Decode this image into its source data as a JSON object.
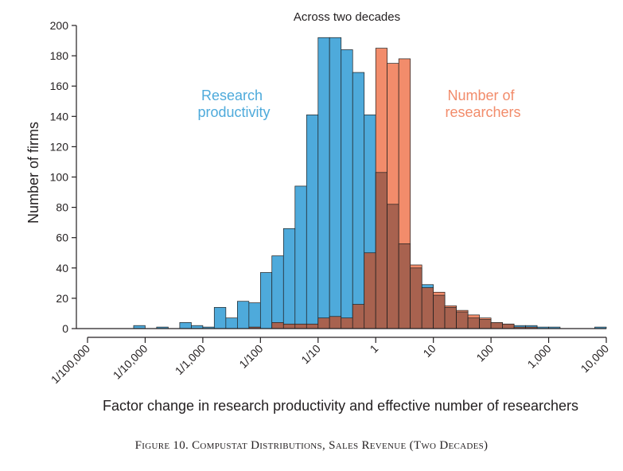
{
  "chart_data": {
    "type": "bar",
    "subtype": "overlapping-histogram",
    "title": "Across two decades",
    "xlabel": "Factor change in research productivity and effective number of researchers",
    "ylabel": "Number of firms",
    "x_scale": "log10",
    "xlim": [
      1e-05,
      10000
    ],
    "ylim": [
      0,
      200
    ],
    "x_ticks": [
      {
        "value": 1e-05,
        "label": "1/100,000"
      },
      {
        "value": 0.0001,
        "label": "1/10,000"
      },
      {
        "value": 0.001,
        "label": "1/1,000"
      },
      {
        "value": 0.01,
        "label": "1/100"
      },
      {
        "value": 0.1,
        "label": "1/10"
      },
      {
        "value": 1,
        "label": "1"
      },
      {
        "value": 10,
        "label": "10"
      },
      {
        "value": 100,
        "label": "100"
      },
      {
        "value": 1000,
        "label": "1,000"
      },
      {
        "value": 10000,
        "label": "10,000"
      }
    ],
    "y_ticks": [
      0,
      20,
      40,
      60,
      80,
      100,
      120,
      140,
      160,
      180,
      200
    ],
    "grid": false,
    "bin_width_log10": 0.2,
    "series": [
      {
        "name": "Research productivity",
        "color": "#4eaadb",
        "bins": [
          {
            "x0": 6.31e-05,
            "x1": 0.0001,
            "count": 2
          },
          {
            "x0": 0.000158,
            "x1": 0.000251,
            "count": 1
          },
          {
            "x0": 0.000398,
            "x1": 0.000631,
            "count": 4
          },
          {
            "x0": 0.000631,
            "x1": 0.001,
            "count": 2
          },
          {
            "x0": 0.001,
            "x1": 0.00158,
            "count": 1
          },
          {
            "x0": 0.00158,
            "x1": 0.00251,
            "count": 14
          },
          {
            "x0": 0.00251,
            "x1": 0.00398,
            "count": 7
          },
          {
            "x0": 0.00398,
            "x1": 0.00631,
            "count": 18
          },
          {
            "x0": 0.00631,
            "x1": 0.01,
            "count": 17
          },
          {
            "x0": 0.01,
            "x1": 0.0158,
            "count": 37
          },
          {
            "x0": 0.0158,
            "x1": 0.0251,
            "count": 48
          },
          {
            "x0": 0.0251,
            "x1": 0.0398,
            "count": 66
          },
          {
            "x0": 0.0398,
            "x1": 0.0631,
            "count": 94
          },
          {
            "x0": 0.0631,
            "x1": 0.1,
            "count": 141
          },
          {
            "x0": 0.1,
            "x1": 0.158,
            "count": 192
          },
          {
            "x0": 0.158,
            "x1": 0.251,
            "count": 192
          },
          {
            "x0": 0.251,
            "x1": 0.398,
            "count": 184
          },
          {
            "x0": 0.398,
            "x1": 0.631,
            "count": 169
          },
          {
            "x0": 0.631,
            "x1": 1.0,
            "count": 141
          },
          {
            "x0": 1.0,
            "x1": 1.58,
            "count": 103
          },
          {
            "x0": 1.58,
            "x1": 2.51,
            "count": 82
          },
          {
            "x0": 2.51,
            "x1": 3.98,
            "count": 56
          },
          {
            "x0": 3.98,
            "x1": 6.31,
            "count": 40
          },
          {
            "x0": 6.31,
            "x1": 10.0,
            "count": 29
          },
          {
            "x0": 10.0,
            "x1": 15.8,
            "count": 22
          },
          {
            "x0": 15.8,
            "x1": 25.1,
            "count": 14
          },
          {
            "x0": 25.1,
            "x1": 39.8,
            "count": 11
          },
          {
            "x0": 39.8,
            "x1": 63.1,
            "count": 7
          },
          {
            "x0": 63.1,
            "x1": 100,
            "count": 6
          },
          {
            "x0": 100,
            "x1": 158,
            "count": 4
          },
          {
            "x0": 158,
            "x1": 251,
            "count": 3
          },
          {
            "x0": 251,
            "x1": 398,
            "count": 2
          },
          {
            "x0": 398,
            "x1": 631,
            "count": 2
          },
          {
            "x0": 631,
            "x1": 1000,
            "count": 1
          },
          {
            "x0": 1000,
            "x1": 1580,
            "count": 1
          },
          {
            "x0": 6310,
            "x1": 10000,
            "count": 1
          }
        ]
      },
      {
        "name": "Number of researchers",
        "color": "#f28c6b",
        "bins": [
          {
            "x0": 0.00631,
            "x1": 0.01,
            "count": 1
          },
          {
            "x0": 0.0158,
            "x1": 0.0251,
            "count": 4
          },
          {
            "x0": 0.0251,
            "x1": 0.0398,
            "count": 3
          },
          {
            "x0": 0.0398,
            "x1": 0.0631,
            "count": 3
          },
          {
            "x0": 0.0631,
            "x1": 0.1,
            "count": 3
          },
          {
            "x0": 0.1,
            "x1": 0.158,
            "count": 7
          },
          {
            "x0": 0.158,
            "x1": 0.251,
            "count": 8
          },
          {
            "x0": 0.251,
            "x1": 0.398,
            "count": 7
          },
          {
            "x0": 0.398,
            "x1": 0.631,
            "count": 16
          },
          {
            "x0": 0.631,
            "x1": 1.0,
            "count": 50
          },
          {
            "x0": 1.0,
            "x1": 1.58,
            "count": 185
          },
          {
            "x0": 1.58,
            "x1": 2.51,
            "count": 175
          },
          {
            "x0": 2.51,
            "x1": 3.98,
            "count": 178
          },
          {
            "x0": 3.98,
            "x1": 6.31,
            "count": 42
          },
          {
            "x0": 6.31,
            "x1": 10.0,
            "count": 27
          },
          {
            "x0": 10.0,
            "x1": 15.8,
            "count": 24
          },
          {
            "x0": 15.8,
            "x1": 25.1,
            "count": 15
          },
          {
            "x0": 25.1,
            "x1": 39.8,
            "count": 12
          },
          {
            "x0": 39.8,
            "x1": 63.1,
            "count": 9
          },
          {
            "x0": 63.1,
            "x1": 100,
            "count": 7
          },
          {
            "x0": 100,
            "x1": 158,
            "count": 4
          },
          {
            "x0": 158,
            "x1": 251,
            "count": 3
          },
          {
            "x0": 251,
            "x1": 398,
            "count": 1
          },
          {
            "x0": 398,
            "x1": 631,
            "count": 1
          }
        ]
      }
    ],
    "series_labels": [
      {
        "series": "Research productivity",
        "lines": [
          "Research",
          "productivity"
        ],
        "color": "#4eaadb"
      },
      {
        "series": "Number of researchers",
        "lines": [
          "Number of",
          "researchers"
        ],
        "color": "#f28c6b"
      }
    ],
    "overlap_color": "#a8624f"
  },
  "caption": "Figure 10. Compustat Distributions, Sales Revenue (Two Decades)"
}
